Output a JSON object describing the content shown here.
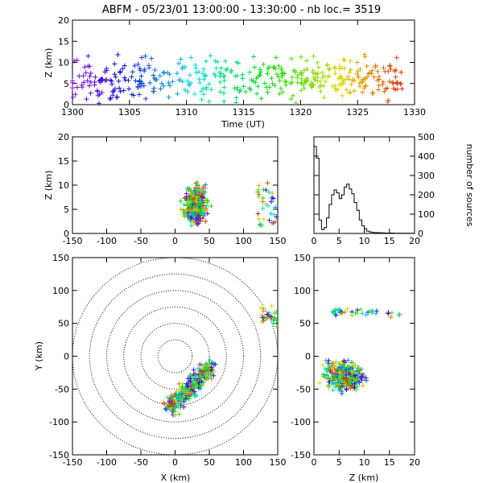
{
  "title": "ABFM - 05/23/01 13:00:00 - 13:30:00 - nb loc.=    3519",
  "chart_data": [
    {
      "id": "time-height",
      "type": "scatter",
      "xlabel": "Time (UT)",
      "ylabel": "Z (km)",
      "xlim": [
        1300,
        1330
      ],
      "ylim": [
        0,
        20
      ],
      "xticks": [
        1300,
        1305,
        1310,
        1315,
        1320,
        1325,
        1330
      ],
      "yticks": [
        0,
        5,
        10,
        15,
        20
      ]
    },
    {
      "id": "x-height",
      "type": "scatter",
      "xlabel": "",
      "ylabel": "Z (km)",
      "xlim": [
        -150,
        150
      ],
      "ylim": [
        0,
        20
      ],
      "xticks": [
        -150,
        -100,
        -50,
        0,
        50,
        100,
        150
      ],
      "yticks": [
        0,
        5,
        10,
        15,
        20
      ]
    },
    {
      "id": "height-histogram",
      "type": "line",
      "xlabel": "",
      "ylabel": "number of sources",
      "xlim": [
        0,
        20
      ],
      "ylim": [
        0,
        500
      ],
      "xticks": [
        0,
        5,
        10,
        15,
        20
      ],
      "yticks": [
        0,
        100,
        200,
        300,
        400,
        500
      ],
      "x": [
        0,
        0.5,
        1,
        1.5,
        2,
        2.5,
        3,
        3.5,
        4,
        4.5,
        5,
        5.5,
        6,
        6.5,
        7,
        7.5,
        8,
        8.5,
        9,
        9.5,
        10,
        10.5,
        11,
        11.5,
        12,
        13,
        14,
        15,
        16,
        17,
        18,
        19,
        20
      ],
      "values": [
        450,
        390,
        70,
        20,
        30,
        80,
        150,
        200,
        225,
        210,
        180,
        200,
        240,
        255,
        230,
        205,
        160,
        120,
        70,
        40,
        25,
        12,
        8,
        5,
        4,
        3,
        2,
        2,
        1,
        1,
        1,
        1,
        0
      ]
    },
    {
      "id": "plan-view",
      "type": "scatter",
      "xlabel": "X (km)",
      "ylabel": "Y (km)",
      "xlim": [
        -150,
        150
      ],
      "ylim": [
        -150,
        150
      ],
      "xticks": [
        -150,
        -100,
        -50,
        0,
        50,
        100,
        150
      ],
      "yticks": [
        -150,
        -100,
        -50,
        0,
        50,
        100,
        150
      ]
    },
    {
      "id": "height-y",
      "type": "scatter",
      "xlabel": "Z (km)",
      "ylabel": "",
      "xlim": [
        0,
        20
      ],
      "ylim": [
        -150,
        150
      ],
      "xticks": [
        0,
        5,
        10,
        15,
        20
      ],
      "yticks": [
        -150,
        -100,
        -50,
        0,
        50,
        100,
        150
      ]
    }
  ]
}
